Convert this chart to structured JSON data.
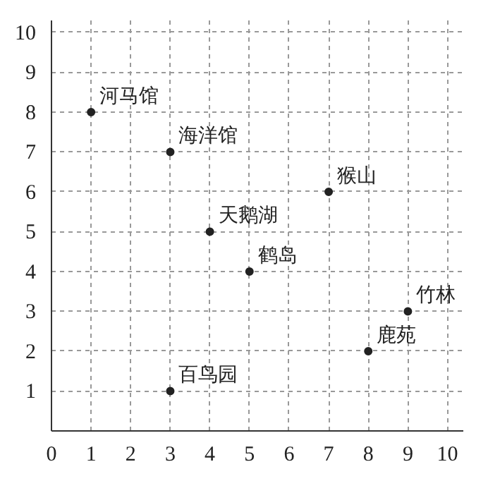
{
  "chart_data": {
    "type": "scatter",
    "x": [
      1,
      3,
      7,
      4,
      5,
      9,
      8,
      3
    ],
    "values": [
      8,
      7,
      6,
      5,
      4,
      3,
      2,
      1
    ],
    "color": "#222222",
    "marker": "circle",
    "grid": true,
    "xlim": [
      0,
      10.4
    ],
    "ylim": [
      0,
      10.3
    ],
    "xticks": [
      0,
      1,
      2,
      3,
      4,
      5,
      6,
      7,
      8,
      9,
      10
    ],
    "yticks": [
      1,
      2,
      3,
      4,
      5,
      6,
      7,
      8,
      9,
      10
    ],
    "annotations": [
      {
        "text": "河马馆",
        "x": 1,
        "y": 8
      },
      {
        "text": "海洋馆",
        "x": 3,
        "y": 7
      },
      {
        "text": "猴山",
        "x": 7,
        "y": 6
      },
      {
        "text": "天鹅湖",
        "x": 4,
        "y": 5
      },
      {
        "text": "鹤岛",
        "x": 5,
        "y": 4
      },
      {
        "text": "竹林",
        "x": 9,
        "y": 3
      },
      {
        "text": "鹿苑",
        "x": 8,
        "y": 2
      },
      {
        "text": "百鸟园",
        "x": 3,
        "y": 1
      }
    ]
  }
}
